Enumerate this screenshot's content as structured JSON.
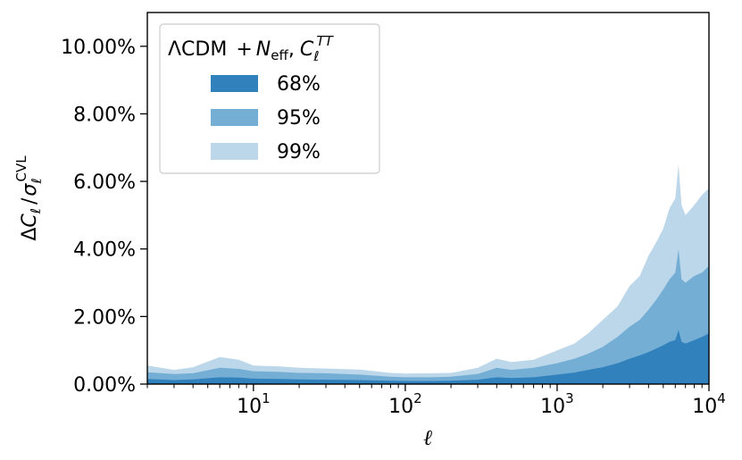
{
  "chart_data": {
    "type": "area",
    "xlabel": "ℓ",
    "ylabel": {
      "delta": "Δ",
      "c": "C",
      "sub": "ℓ",
      "slash": "/",
      "sigma": "σ",
      "sigma_sub": "ℓ",
      "sigma_sup": "CVL"
    },
    "xscale": "log",
    "xlim": [
      2,
      10000
    ],
    "ylim": [
      0,
      11
    ],
    "x_ticks": [
      {
        "base": "10",
        "exp": "1",
        "value": 10
      },
      {
        "base": "10",
        "exp": "2",
        "value": 100
      },
      {
        "base": "10",
        "exp": "3",
        "value": 1000
      },
      {
        "base": "10",
        "exp": "4",
        "value": 10000
      }
    ],
    "y_ticks": [
      {
        "label": "0.00%",
        "value": 0
      },
      {
        "label": "2.00%",
        "value": 2
      },
      {
        "label": "4.00%",
        "value": 4
      },
      {
        "label": "6.00%",
        "value": 6
      },
      {
        "label": "8.00%",
        "value": 8
      },
      {
        "label": "10.00%",
        "value": 10
      }
    ],
    "legend": {
      "position": "top-left",
      "title": {
        "model": "ΛCDM",
        "plus": "+",
        "n": "N",
        "n_sub": "eff",
        "comma": ",",
        "c": "C",
        "c_sub": "ℓ",
        "c_sup": "TT"
      }
    },
    "series": [
      {
        "name": "99%",
        "color": "#bcd7ea",
        "points": [
          [
            2,
            0.55
          ],
          [
            3,
            0.42
          ],
          [
            4,
            0.5
          ],
          [
            6,
            0.8
          ],
          [
            8,
            0.72
          ],
          [
            10,
            0.55
          ],
          [
            15,
            0.52
          ],
          [
            20,
            0.48
          ],
          [
            30,
            0.46
          ],
          [
            50,
            0.43
          ],
          [
            80,
            0.33
          ],
          [
            100,
            0.31
          ],
          [
            150,
            0.32
          ],
          [
            200,
            0.33
          ],
          [
            300,
            0.48
          ],
          [
            400,
            0.75
          ],
          [
            500,
            0.65
          ],
          [
            700,
            0.72
          ],
          [
            1000,
            1.0
          ],
          [
            1300,
            1.2
          ],
          [
            1600,
            1.5
          ],
          [
            2000,
            1.9
          ],
          [
            2500,
            2.3
          ],
          [
            3000,
            2.9
          ],
          [
            3500,
            3.2
          ],
          [
            4000,
            3.8
          ],
          [
            4500,
            4.2
          ],
          [
            5000,
            4.6
          ],
          [
            5500,
            5.2
          ],
          [
            6000,
            5.5
          ],
          [
            6300,
            6.5
          ],
          [
            6600,
            5.3
          ],
          [
            7000,
            5.0
          ],
          [
            8000,
            5.3
          ],
          [
            9000,
            5.6
          ],
          [
            10000,
            5.8
          ]
        ]
      },
      {
        "name": "95%",
        "color": "#74aed5",
        "points": [
          [
            2,
            0.35
          ],
          [
            3,
            0.3
          ],
          [
            4,
            0.32
          ],
          [
            6,
            0.48
          ],
          [
            8,
            0.45
          ],
          [
            10,
            0.38
          ],
          [
            15,
            0.36
          ],
          [
            20,
            0.33
          ],
          [
            30,
            0.32
          ],
          [
            50,
            0.28
          ],
          [
            80,
            0.22
          ],
          [
            100,
            0.2
          ],
          [
            150,
            0.2
          ],
          [
            200,
            0.22
          ],
          [
            300,
            0.3
          ],
          [
            400,
            0.48
          ],
          [
            500,
            0.42
          ],
          [
            700,
            0.48
          ],
          [
            1000,
            0.62
          ],
          [
            1300,
            0.75
          ],
          [
            1600,
            0.9
          ],
          [
            2000,
            1.1
          ],
          [
            2500,
            1.4
          ],
          [
            3000,
            1.7
          ],
          [
            3500,
            1.9
          ],
          [
            4000,
            2.2
          ],
          [
            4500,
            2.5
          ],
          [
            5000,
            2.8
          ],
          [
            5500,
            3.1
          ],
          [
            6000,
            3.3
          ],
          [
            6300,
            4.0
          ],
          [
            6600,
            3.1
          ],
          [
            7000,
            3.0
          ],
          [
            8000,
            3.2
          ],
          [
            9000,
            3.3
          ],
          [
            10000,
            3.5
          ]
        ]
      },
      {
        "name": "68%",
        "color": "#3181bd",
        "points": [
          [
            2,
            0.15
          ],
          [
            3,
            0.12
          ],
          [
            4,
            0.14
          ],
          [
            6,
            0.2
          ],
          [
            8,
            0.19
          ],
          [
            10,
            0.16
          ],
          [
            15,
            0.15
          ],
          [
            20,
            0.14
          ],
          [
            30,
            0.13
          ],
          [
            50,
            0.12
          ],
          [
            80,
            0.1
          ],
          [
            100,
            0.09
          ],
          [
            150,
            0.09
          ],
          [
            200,
            0.1
          ],
          [
            300,
            0.13
          ],
          [
            400,
            0.2
          ],
          [
            500,
            0.18
          ],
          [
            700,
            0.2
          ],
          [
            1000,
            0.28
          ],
          [
            1300,
            0.34
          ],
          [
            1600,
            0.42
          ],
          [
            2000,
            0.5
          ],
          [
            2500,
            0.62
          ],
          [
            3000,
            0.75
          ],
          [
            3500,
            0.85
          ],
          [
            4000,
            0.95
          ],
          [
            4500,
            1.05
          ],
          [
            5000,
            1.15
          ],
          [
            5500,
            1.25
          ],
          [
            6000,
            1.3
          ],
          [
            6300,
            1.6
          ],
          [
            6600,
            1.25
          ],
          [
            7000,
            1.2
          ],
          [
            8000,
            1.3
          ],
          [
            9000,
            1.4
          ],
          [
            10000,
            1.5
          ]
        ]
      }
    ]
  }
}
